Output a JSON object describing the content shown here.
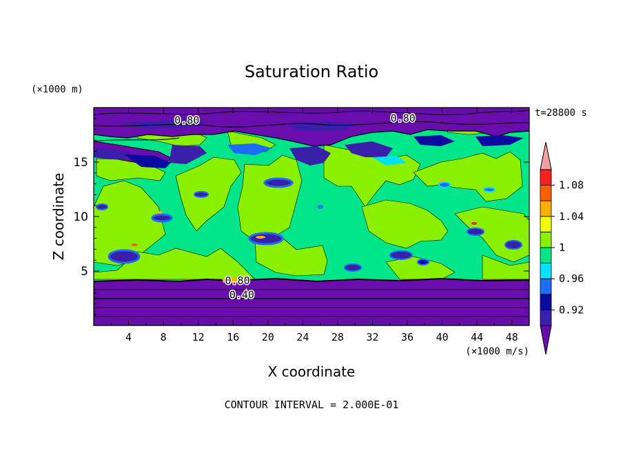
{
  "chart_data": {
    "type": "heatmap",
    "title": "Saturation Ratio",
    "xlabel": "X coordinate",
    "ylabel": "Z coordinate",
    "x_unit": "(×1000 m/s)",
    "y_unit": "(×1000 m)",
    "time_label": "t=28800 s",
    "footer": "CONTOUR INTERVAL = 2.000E-01",
    "xlim": [
      0,
      50
    ],
    "ylim": [
      0,
      20
    ],
    "x_ticks": [
      "4",
      "8",
      "12",
      "16",
      "20",
      "24",
      "28",
      "32",
      "36",
      "40",
      "44",
      "48"
    ],
    "y_ticks": [
      "5",
      "10",
      "15"
    ],
    "contour_labels": [
      {
        "text": "0.80",
        "x": 10.7,
        "z": 18.5
      },
      {
        "text": "0.80",
        "x": 35.5,
        "z": 18.7
      },
      {
        "text": "0.80",
        "x": 16.5,
        "z": 3.8
      },
      {
        "text": "0.40",
        "x": 17.0,
        "z": 2.5
      }
    ],
    "colorbar": {
      "levels": [
        0.9,
        0.92,
        0.94,
        0.96,
        0.98,
        1.0,
        1.02,
        1.04,
        1.06,
        1.08,
        1.1
      ],
      "tick_labels": [
        "0.92",
        "0.96",
        "1",
        "1.04",
        "1.08"
      ],
      "colors": [
        "#6a0dad",
        "#3a1fa8",
        "#0a0aa0",
        "#1e6bff",
        "#00e0ff",
        "#00e58a",
        "#8af000",
        "#f0ff00",
        "#ffb000",
        "#ff6000",
        "#ff2020",
        "#f4a0a0"
      ]
    }
  }
}
